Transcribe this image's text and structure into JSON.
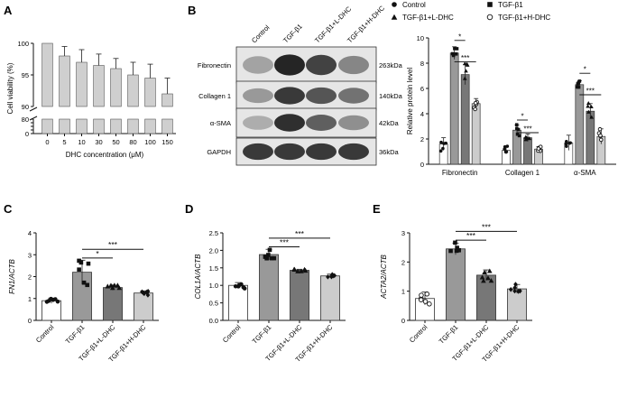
{
  "panel_letters": [
    "A",
    "B",
    "C",
    "D",
    "E"
  ],
  "blot": {
    "lanes": [
      "Control",
      "TGF-β1",
      "TGF-β1+L-DHC",
      "TGF-β1+H-DHC"
    ],
    "rows": [
      {
        "protein": "Fibronectin",
        "size": "263kDa",
        "intensity": [
          0.3,
          0.95,
          0.8,
          0.45
        ]
      },
      {
        "protein": "Collagen 1",
        "size": "140kDa",
        "intensity": [
          0.35,
          0.85,
          0.7,
          0.55
        ]
      },
      {
        "protein": "α-SMA",
        "size": "42kDa",
        "intensity": [
          0.25,
          0.9,
          0.65,
          0.4
        ]
      },
      {
        "protein": "GAPDH",
        "size": "36kDa",
        "intensity": [
          0.85,
          0.85,
          0.85,
          0.85
        ]
      }
    ]
  },
  "chart_data": [
    {
      "panel": "A",
      "type": "bar",
      "xlabel": "DHC concentration (μM)",
      "ylabel": "Cell viability (%)",
      "categories": [
        "0",
        "5",
        "10",
        "30",
        "50",
        "80",
        "100",
        "150"
      ],
      "values": [
        100,
        98,
        97,
        96.5,
        96,
        95,
        94.5,
        92
      ],
      "errors": [
        0,
        1.5,
        2,
        1.8,
        1.6,
        2,
        2.2,
        2.5
      ],
      "y_ticks_lower": [
        "0",
        "20",
        "40",
        "60",
        "80"
      ],
      "y_ticks_upper": [
        "90",
        "95",
        "100"
      ],
      "axis_break": [
        80,
        90
      ]
    },
    {
      "panel": "B",
      "type": "bar",
      "ylabel": "Relative protein level",
      "ylim": [
        0,
        10
      ],
      "yticks": [
        "0",
        "2",
        "4",
        "6",
        "8",
        "10"
      ],
      "categories": [
        "Fibronectin",
        "Collagen 1",
        "α-SMA"
      ],
      "series": [
        {
          "name": "Control",
          "values": [
            1.6,
            1.1,
            1.7
          ],
          "errors": [
            0.5,
            0.3,
            0.6
          ]
        },
        {
          "name": "TGF-β1",
          "values": [
            8.8,
            2.7,
            6.3
          ],
          "errors": [
            0.5,
            0.4,
            0.3
          ]
        },
        {
          "name": "TGF-β1+L-DHC",
          "values": [
            7.1,
            2.1,
            4.2
          ],
          "errors": [
            0.8,
            0.3,
            0.6
          ]
        },
        {
          "name": "TGF-β1+H-DHC",
          "values": [
            4.8,
            1.2,
            2.2
          ],
          "errors": [
            0.4,
            0.2,
            0.6
          ]
        }
      ],
      "legend_markers": [
        "filled-circle",
        "filled-square",
        "filled-triangle",
        "open-circle"
      ],
      "annotations": [
        {
          "group": 0,
          "from": 1,
          "to": 2,
          "label": "*",
          "y": 9.8
        },
        {
          "group": 0,
          "from": 1,
          "to": 3,
          "label": "***",
          "y": 8.1
        },
        {
          "group": 1,
          "from": 1,
          "to": 2,
          "label": "*",
          "y": 3.5
        },
        {
          "group": 1,
          "from": 1,
          "to": 3,
          "label": "***",
          "y": 2.5
        },
        {
          "group": 2,
          "from": 1,
          "to": 2,
          "label": "*",
          "y": 7.2
        },
        {
          "group": 2,
          "from": 1,
          "to": 3,
          "label": "***",
          "y": 5.5
        }
      ]
    },
    {
      "panel": "C",
      "type": "bar",
      "ylabel": "FN1/ACTB",
      "ylim": [
        0,
        4
      ],
      "yticks": [
        "0",
        "1",
        "2",
        "3",
        "4"
      ],
      "categories": [
        "Control",
        "TGF-β1",
        "TGF-β1+L-DHC",
        "TGF-β1+H-DHC"
      ],
      "values": [
        0.9,
        2.2,
        1.5,
        1.25
      ],
      "errors": [
        0.12,
        0.55,
        0.12,
        0.1
      ],
      "annotations": [
        {
          "from": 1,
          "to": 2,
          "label": "*",
          "y": 2.85
        },
        {
          "from": 1,
          "to": 3,
          "label": "***",
          "y": 3.25
        }
      ]
    },
    {
      "panel": "D",
      "type": "bar",
      "ylabel": "COL1A/ACTB",
      "ylim": [
        0,
        2.5
      ],
      "yticks": [
        "0.0",
        "0.5",
        "1.0",
        "1.5",
        "2.0",
        "2.5"
      ],
      "categories": [
        "Control",
        "TGF-β1",
        "TGF-β1+L-DHC",
        "TGF-β1+H-DHC"
      ],
      "values": [
        1.0,
        1.88,
        1.43,
        1.27
      ],
      "errors": [
        0.08,
        0.15,
        0.03,
        0.05
      ],
      "annotations": [
        {
          "from": 1,
          "to": 2,
          "label": "***",
          "y": 2.1
        },
        {
          "from": 1,
          "to": 3,
          "label": "***",
          "y": 2.35
        }
      ]
    },
    {
      "panel": "E",
      "type": "bar",
      "ylabel": "ACTA2/ACTB",
      "ylim": [
        0,
        3
      ],
      "yticks": [
        "0",
        "1",
        "2",
        "3"
      ],
      "categories": [
        "Control",
        "TGF-β1",
        "TGF-β1+L-DHC",
        "TGF-β1+H-DHC"
      ],
      "values": [
        0.75,
        2.45,
        1.55,
        1.08
      ],
      "errors": [
        0.22,
        0.2,
        0.18,
        0.15
      ],
      "annotations": [
        {
          "from": 1,
          "to": 2,
          "label": "***",
          "y": 2.75
        },
        {
          "from": 1,
          "to": 3,
          "label": "***",
          "y": 3.05
        }
      ]
    }
  ],
  "colors": {
    "control": "#ffffff",
    "tgf": "#999999",
    "l_dhc": "#777777",
    "h_dhc": "#cccccc",
    "viability_bar": "#cfcfcf",
    "axis": "#111111"
  }
}
